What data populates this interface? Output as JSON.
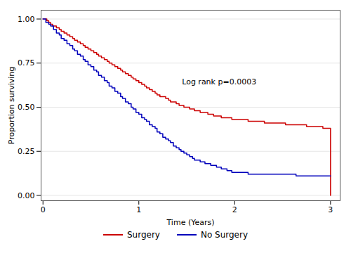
{
  "chart_data": {
    "type": "step",
    "xlabel": "Time (Years)",
    "ylabel": "Proportion surviving",
    "xlim": [
      -0.02,
      3.1
    ],
    "ylim": [
      -0.03,
      1.05
    ],
    "xticks": [
      0,
      1,
      2,
      3
    ],
    "yticks": [
      {
        "value": 0.0,
        "label": "0.00"
      },
      {
        "value": 0.25,
        "label": "0.25"
      },
      {
        "value": 0.5,
        "label": "0.50"
      },
      {
        "value": 0.75,
        "label": "0.75"
      },
      {
        "value": 1.0,
        "label": "1.00"
      }
    ],
    "grid": "y",
    "legend": "bottom",
    "annotations": [
      {
        "text": "Log rank p=0.0003",
        "x": 1.45,
        "y": 0.63
      }
    ],
    "series": [
      {
        "name": "Surgery",
        "color": "#cc0000",
        "x": [
          0.0,
          0.04,
          0.06,
          0.08,
          0.1,
          0.12,
          0.14,
          0.17,
          0.19,
          0.22,
          0.25,
          0.28,
          0.31,
          0.33,
          0.36,
          0.39,
          0.42,
          0.44,
          0.47,
          0.5,
          0.53,
          0.56,
          0.58,
          0.61,
          0.64,
          0.67,
          0.69,
          0.72,
          0.75,
          0.78,
          0.81,
          0.83,
          0.86,
          0.89,
          0.92,
          0.94,
          0.97,
          1.0,
          1.03,
          1.06,
          1.08,
          1.11,
          1.14,
          1.17,
          1.19,
          1.22,
          1.25,
          1.28,
          1.31,
          1.33,
          1.36,
          1.39,
          1.42,
          1.44,
          1.47,
          1.5,
          1.53,
          1.56,
          1.58,
          1.61,
          1.64,
          1.67,
          1.69,
          1.72,
          1.75,
          1.78,
          1.81,
          1.83,
          1.86,
          1.89,
          1.92,
          1.97,
          2.03,
          2.08,
          2.14,
          2.19,
          2.25,
          2.31,
          2.36,
          2.42,
          2.47,
          2.53,
          2.58,
          2.64,
          2.69,
          2.75,
          2.81,
          2.86,
          2.92,
          2.97,
          3.0
        ],
        "values": [
          1.0,
          0.99,
          0.98,
          0.97,
          0.96,
          0.96,
          0.95,
          0.94,
          0.93,
          0.92,
          0.91,
          0.9,
          0.89,
          0.88,
          0.87,
          0.86,
          0.85,
          0.84,
          0.83,
          0.82,
          0.81,
          0.8,
          0.79,
          0.78,
          0.77,
          0.76,
          0.75,
          0.74,
          0.73,
          0.72,
          0.71,
          0.7,
          0.69,
          0.68,
          0.67,
          0.66,
          0.65,
          0.64,
          0.63,
          0.62,
          0.61,
          0.6,
          0.59,
          0.58,
          0.57,
          0.56,
          0.56,
          0.55,
          0.54,
          0.53,
          0.53,
          0.52,
          0.51,
          0.51,
          0.5,
          0.5,
          0.49,
          0.49,
          0.48,
          0.48,
          0.47,
          0.47,
          0.47,
          0.46,
          0.46,
          0.45,
          0.45,
          0.45,
          0.44,
          0.44,
          0.44,
          0.43,
          0.43,
          0.43,
          0.42,
          0.42,
          0.42,
          0.41,
          0.41,
          0.41,
          0.41,
          0.4,
          0.4,
          0.4,
          0.4,
          0.39,
          0.39,
          0.39,
          0.38,
          0.38,
          0.0
        ]
      },
      {
        "name": "No Surgery",
        "color": "#0000bb",
        "x": [
          0.0,
          0.03,
          0.06,
          0.08,
          0.11,
          0.14,
          0.17,
          0.19,
          0.22,
          0.25,
          0.28,
          0.31,
          0.33,
          0.36,
          0.39,
          0.42,
          0.44,
          0.47,
          0.5,
          0.53,
          0.56,
          0.58,
          0.61,
          0.64,
          0.67,
          0.69,
          0.72,
          0.75,
          0.78,
          0.81,
          0.83,
          0.86,
          0.89,
          0.92,
          0.94,
          0.97,
          1.0,
          1.03,
          1.06,
          1.08,
          1.11,
          1.14,
          1.17,
          1.19,
          1.22,
          1.25,
          1.28,
          1.31,
          1.33,
          1.36,
          1.39,
          1.42,
          1.44,
          1.47,
          1.5,
          1.53,
          1.56,
          1.58,
          1.64,
          1.69,
          1.75,
          1.81,
          1.86,
          1.92,
          1.97,
          2.03,
          2.08,
          2.14,
          2.19,
          2.25,
          2.31,
          2.36,
          2.42,
          2.47,
          2.53,
          2.58,
          2.64,
          2.69,
          2.75,
          2.81,
          2.86,
          2.92,
          2.97,
          3.0
        ],
        "values": [
          1.0,
          0.98,
          0.97,
          0.96,
          0.94,
          0.92,
          0.91,
          0.89,
          0.88,
          0.86,
          0.85,
          0.83,
          0.82,
          0.8,
          0.79,
          0.77,
          0.76,
          0.74,
          0.73,
          0.71,
          0.7,
          0.68,
          0.67,
          0.65,
          0.64,
          0.62,
          0.61,
          0.59,
          0.58,
          0.56,
          0.55,
          0.53,
          0.52,
          0.5,
          0.49,
          0.47,
          0.46,
          0.44,
          0.43,
          0.42,
          0.4,
          0.39,
          0.38,
          0.36,
          0.35,
          0.33,
          0.32,
          0.31,
          0.3,
          0.28,
          0.27,
          0.26,
          0.25,
          0.24,
          0.23,
          0.22,
          0.21,
          0.2,
          0.19,
          0.18,
          0.17,
          0.16,
          0.15,
          0.14,
          0.13,
          0.13,
          0.13,
          0.12,
          0.12,
          0.12,
          0.12,
          0.12,
          0.12,
          0.12,
          0.12,
          0.12,
          0.11,
          0.11,
          0.11,
          0.11,
          0.11,
          0.11,
          0.11,
          0.11
        ]
      }
    ]
  }
}
